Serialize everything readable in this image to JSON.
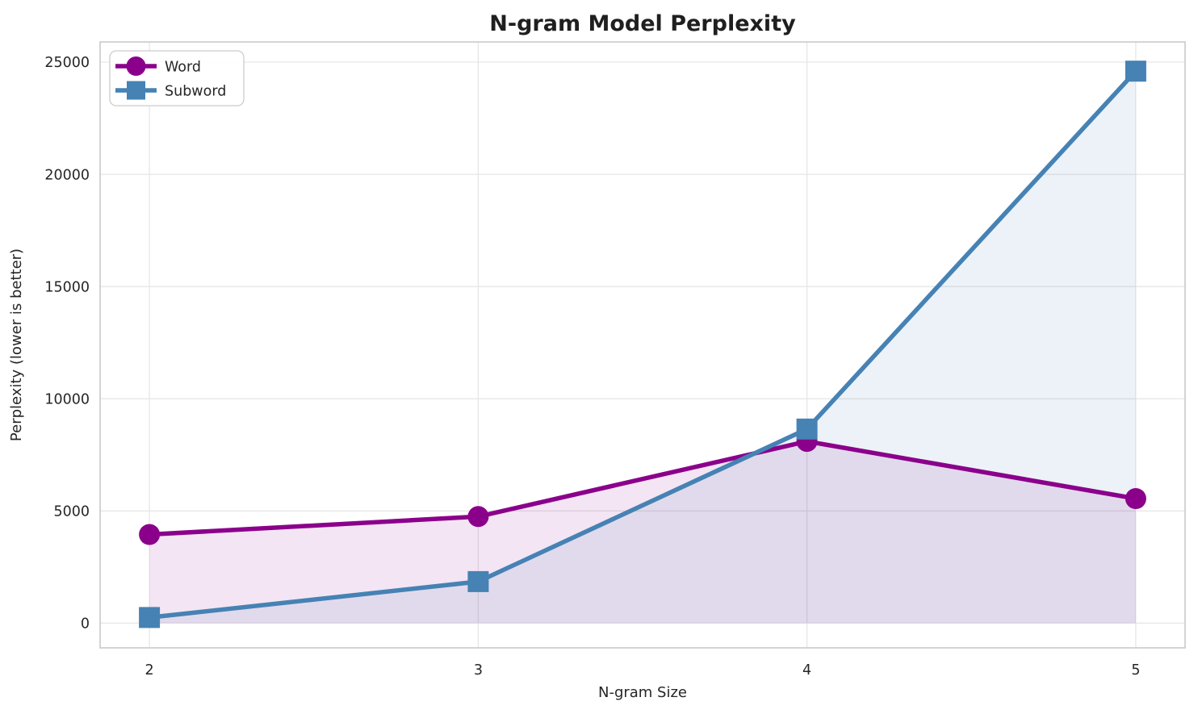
{
  "chart_data": {
    "type": "line",
    "title": "N-gram Model Perplexity",
    "xlabel": "N-gram Size",
    "ylabel": "Perplexity (lower is better)",
    "x": [
      2,
      3,
      4,
      5
    ],
    "xticks": [
      2,
      3,
      4,
      5
    ],
    "yticks": [
      0,
      5000,
      10000,
      15000,
      20000,
      25000
    ],
    "xlim": [
      1.85,
      5.15
    ],
    "ylim": [
      -1100,
      25900
    ],
    "grid": true,
    "legend_position": "upper left",
    "series": [
      {
        "name": "Word",
        "values": [
          3950,
          4750,
          8100,
          5550
        ],
        "color": "#8B008B",
        "marker": "circle",
        "fill_alpha": 0.1
      },
      {
        "name": "Subword",
        "values": [
          250,
          1850,
          8650,
          24600
        ],
        "color": "#4682B4",
        "marker": "square",
        "fill_alpha": 0.1
      }
    ]
  },
  "colors": {
    "background": "#ffffff",
    "grid": "#e6e6e6",
    "spine": "#cfcfcf",
    "text": "#262626"
  }
}
